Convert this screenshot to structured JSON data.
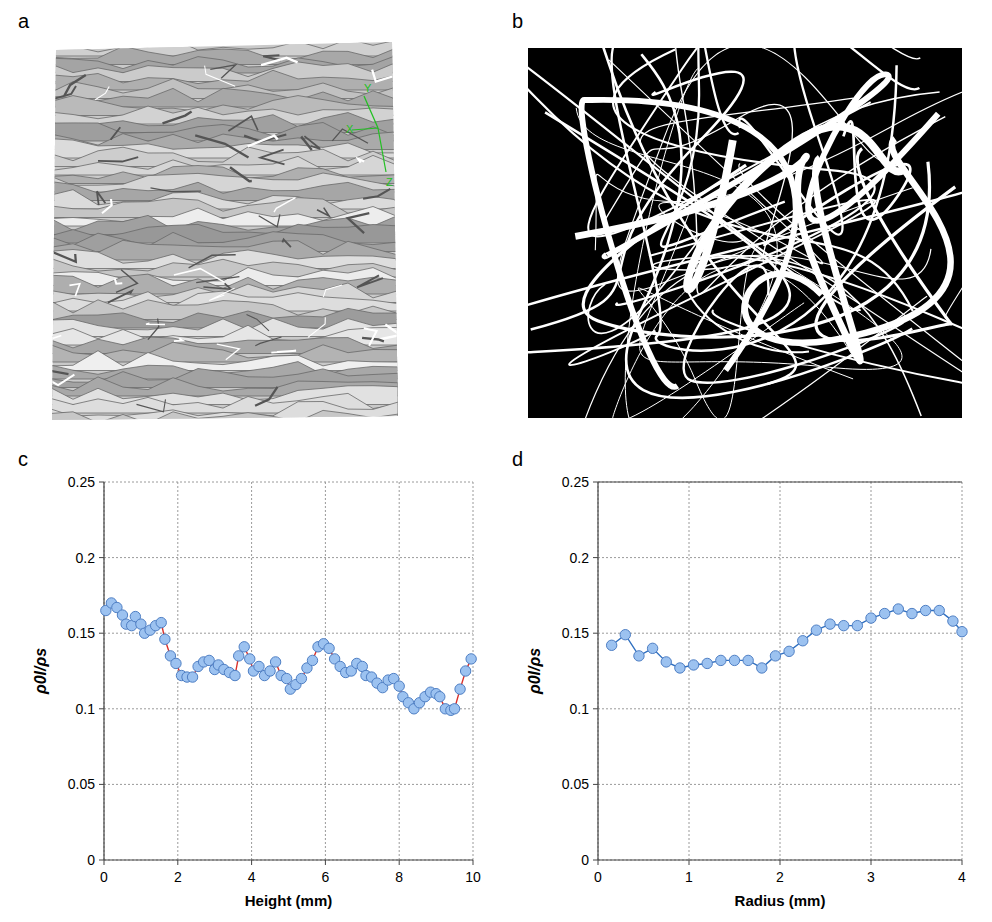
{
  "panel_labels": [
    "a",
    "b",
    "c",
    "d"
  ],
  "images": {
    "a_axis_labels": [
      "Y",
      "X",
      "Z"
    ]
  },
  "chart_data": [
    {
      "type": "line",
      "x_label": "Height (mm)",
      "y_label": "ρ0l/ρs",
      "x": [
        0.05,
        0.2,
        0.35,
        0.5,
        0.6,
        0.75,
        0.85,
        1.0,
        1.1,
        1.25,
        1.4,
        1.55,
        1.65,
        1.8,
        1.95,
        2.1,
        2.25,
        2.4,
        2.55,
        2.7,
        2.85,
        3.0,
        3.1,
        3.25,
        3.4,
        3.55,
        3.65,
        3.8,
        3.95,
        4.05,
        4.2,
        4.35,
        4.5,
        4.65,
        4.8,
        4.95,
        5.05,
        5.2,
        5.35,
        5.5,
        5.65,
        5.8,
        5.95,
        6.1,
        6.25,
        6.4,
        6.55,
        6.7,
        6.85,
        7.0,
        7.1,
        7.25,
        7.4,
        7.55,
        7.7,
        7.85,
        8.0,
        8.1,
        8.25,
        8.4,
        8.55,
        8.7,
        8.85,
        9.0,
        9.1,
        9.25,
        9.4,
        9.5,
        9.65,
        9.8,
        9.95
      ],
      "series": [
        {
          "color": "#d9302b",
          "marker": "circle",
          "values": [
            0.165,
            0.17,
            0.167,
            0.162,
            0.156,
            0.155,
            0.161,
            0.156,
            0.15,
            0.152,
            0.155,
            0.157,
            0.146,
            0.135,
            0.13,
            0.122,
            0.121,
            0.121,
            0.128,
            0.131,
            0.132,
            0.126,
            0.129,
            0.126,
            0.124,
            0.122,
            0.135,
            0.141,
            0.133,
            0.125,
            0.128,
            0.122,
            0.125,
            0.131,
            0.122,
            0.12,
            0.113,
            0.116,
            0.12,
            0.127,
            0.132,
            0.141,
            0.143,
            0.14,
            0.133,
            0.128,
            0.124,
            0.125,
            0.13,
            0.128,
            0.122,
            0.121,
            0.117,
            0.114,
            0.119,
            0.12,
            0.115,
            0.108,
            0.104,
            0.1,
            0.104,
            0.108,
            0.111,
            0.11,
            0.108,
            0.1,
            0.099,
            0.1,
            0.113,
            0.125,
            0.133
          ]
        }
      ],
      "xlim": [
        0,
        10
      ],
      "xticks": [
        0,
        2,
        4,
        6,
        8,
        10
      ],
      "ylim": [
        0,
        0.25
      ],
      "yticks": [
        0,
        0.05,
        0.1,
        0.15,
        0.2,
        0.25
      ],
      "grid": true
    },
    {
      "type": "line",
      "x_label": "Radius (mm)",
      "y_label": "ρ0l/ρs",
      "x": [
        0.15,
        0.3,
        0.45,
        0.6,
        0.75,
        0.9,
        1.05,
        1.2,
        1.35,
        1.5,
        1.65,
        1.8,
        1.95,
        2.1,
        2.25,
        2.4,
        2.55,
        2.7,
        2.85,
        3.0,
        3.15,
        3.3,
        3.45,
        3.6,
        3.75,
        3.9,
        4.0
      ],
      "series": [
        {
          "color": "#2f6fc0",
          "marker": "circle",
          "values": [
            0.142,
            0.149,
            0.135,
            0.14,
            0.131,
            0.127,
            0.129,
            0.13,
            0.132,
            0.132,
            0.132,
            0.127,
            0.135,
            0.138,
            0.145,
            0.152,
            0.156,
            0.155,
            0.155,
            0.16,
            0.163,
            0.166,
            0.163,
            0.165,
            0.165,
            0.158,
            0.151
          ]
        }
      ],
      "xlim": [
        0,
        4
      ],
      "xticks": [
        0,
        1,
        2,
        3,
        4
      ],
      "ylim": [
        0,
        0.25
      ],
      "yticks": [
        0,
        0.05,
        0.1,
        0.15,
        0.2,
        0.25
      ],
      "grid": true
    }
  ]
}
